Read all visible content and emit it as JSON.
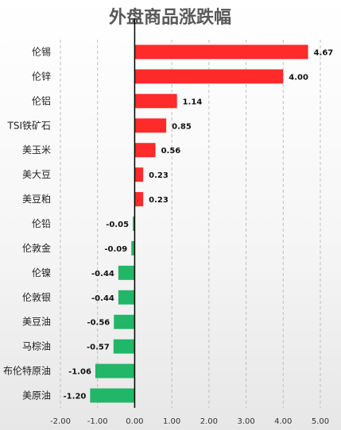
{
  "chart_data": {
    "type": "bar",
    "orientation": "horizontal",
    "title": "外盘商品涨跌幅",
    "categories": [
      "伦锡",
      "伦锌",
      "伦铝",
      "TSI铁矿石",
      "美玉米",
      "美大豆",
      "美豆粕",
      "伦铅",
      "伦敦金",
      "伦镍",
      "伦敦银",
      "美豆油",
      "马棕油",
      "布伦特原油",
      "美原油"
    ],
    "values": [
      4.67,
      4.0,
      1.14,
      0.85,
      0.56,
      0.23,
      0.23,
      -0.05,
      -0.09,
      -0.44,
      -0.44,
      -0.56,
      -0.57,
      -1.06,
      -1.2
    ],
    "value_labels": [
      "4.67",
      "4.00",
      "1.14",
      "0.85",
      "0.56",
      "0.23",
      "0.23",
      "-0.05",
      "-0.09",
      "-0.44",
      "-0.44",
      "-0.56",
      "-0.57",
      "-1.06",
      "-1.20"
    ],
    "xlim": [
      -2.0,
      5.0
    ],
    "xticks": [
      -2,
      -1,
      0,
      1,
      2,
      3,
      4,
      5
    ],
    "xtick_labels": [
      "-2.00",
      "-1.00",
      "0.00",
      "1.00",
      "2.00",
      "3.00",
      "4.00",
      "5.00"
    ],
    "grid": "vertical-dashed",
    "colors": {
      "positive": "#ff2a2a",
      "negative": "#21b668",
      "axis": "#000000",
      "grid": "#bfbfbf"
    }
  }
}
